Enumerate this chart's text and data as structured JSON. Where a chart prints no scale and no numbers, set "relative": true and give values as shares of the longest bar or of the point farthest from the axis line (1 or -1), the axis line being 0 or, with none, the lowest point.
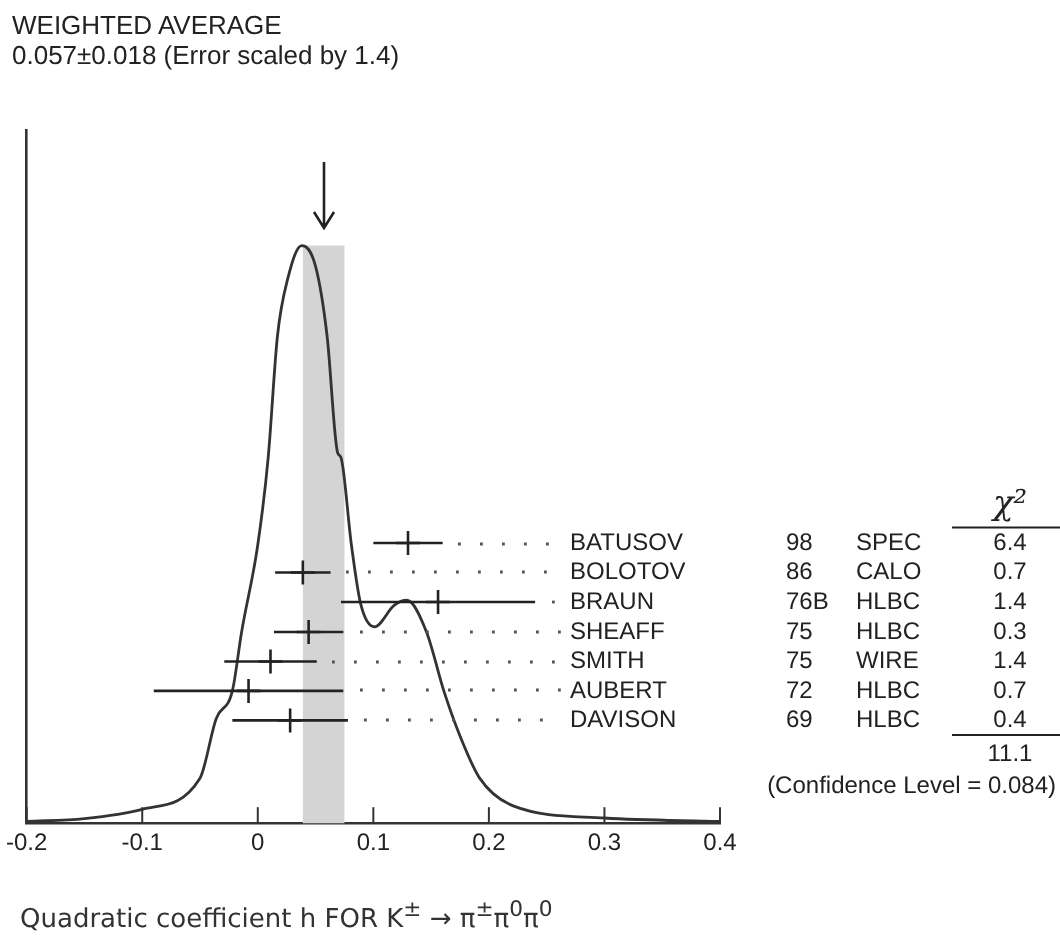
{
  "chart_data": {
    "type": "line",
    "title": "WEIGHTED AVERAGE",
    "subtitle": "0.057±0.018 (Error scaled by 1.4)",
    "xlabel": "Quadratic coefficient h FOR K$^{±}$ → π$^{±}$π$^{0}$π$^{0}$",
    "relative": true,
    "legend": "right",
    "grid": false,
    "xlim": [
      -0.2,
      0.4
    ],
    "xticks": [
      -0.2,
      -0.1,
      0,
      0.1,
      0.2,
      0.3,
      0.4
    ],
    "bands": [
      {
        "axis": "x",
        "from": 0.039,
        "to": 0.075,
        "color": "#d4d4d4"
      }
    ],
    "series": [
      {
        "marker": "none",
        "color": "#333333",
        "x": [
          -0.2,
          -0.15,
          -0.1,
          -0.05,
          -0.036,
          -0.022,
          -0.014,
          0,
          0.009,
          0.017,
          0.026,
          0.038,
          0.05,
          0.06,
          0.069,
          0.072,
          0.081,
          0.089,
          0.101,
          0.118,
          0.129,
          0.146,
          0.161,
          0.175,
          0.192,
          0.221,
          0.3,
          0.4
        ],
        "values": [
          0.003,
          0.008,
          0.024,
          0.078,
          0.181,
          0.229,
          0.331,
          0.482,
          0.633,
          0.843,
          0.943,
          1,
          0.964,
          0.843,
          0.642,
          0.633,
          0.482,
          0.38,
          0.34,
          0.377,
          0.386,
          0.331,
          0.229,
          0.151,
          0.078,
          0.03,
          0.009,
          0.003
        ]
      },
      {
        "type": "scatter",
        "name": "BATUSOV",
        "marker": "cross",
        "color": "#222222",
        "x": [
          0.13
        ],
        "values": [
          0.485
        ],
        "xerrors": [
          0.03
        ]
      },
      {
        "type": "scatter",
        "name": "BOLOTOV",
        "marker": "cross",
        "color": "#222222",
        "x": [
          0.039
        ],
        "values": [
          0.434
        ],
        "xerrors": [
          0.024
        ]
      },
      {
        "type": "scatter",
        "name": "BRAUN",
        "marker": "cross",
        "color": "#222222",
        "x": [
          0.156
        ],
        "values": [
          0.383
        ],
        "xerrors": [
          0.084
        ]
      },
      {
        "type": "scatter",
        "name": "SHEAFF",
        "marker": "cross",
        "color": "#222222",
        "x": [
          0.044
        ],
        "values": [
          0.331
        ],
        "xerrors": [
          0.03
        ]
      },
      {
        "type": "scatter",
        "name": "SMITH",
        "marker": "cross",
        "color": "#222222",
        "x": [
          0.011
        ],
        "values": [
          0.28
        ],
        "xerrors": [
          0.04
        ]
      },
      {
        "type": "scatter",
        "name": "AUBERT",
        "marker": "cross",
        "color": "#222222",
        "x": [
          -0.008
        ],
        "values": [
          0.229
        ],
        "xerrors": [
          0.082
        ]
      },
      {
        "type": "scatter",
        "name": "DAVISON",
        "marker": "cross",
        "color": "#222222",
        "x": [
          0.028
        ],
        "values": [
          0.178
        ],
        "xerrors": [
          0.05
        ]
      }
    ],
    "annotations": [
      "χ²",
      "98",
      "SPEC",
      "6.4",
      "86",
      "CALO",
      "0.7",
      "76B",
      "HLBC",
      "1.4",
      "75",
      "HLBC",
      "0.3",
      "75",
      "WIRE",
      "1.4",
      "72",
      "HLBC",
      "0.7",
      "69",
      "HLBC",
      "0.4",
      "11.1",
      "(Confidence Level = 0.084)"
    ]
  }
}
